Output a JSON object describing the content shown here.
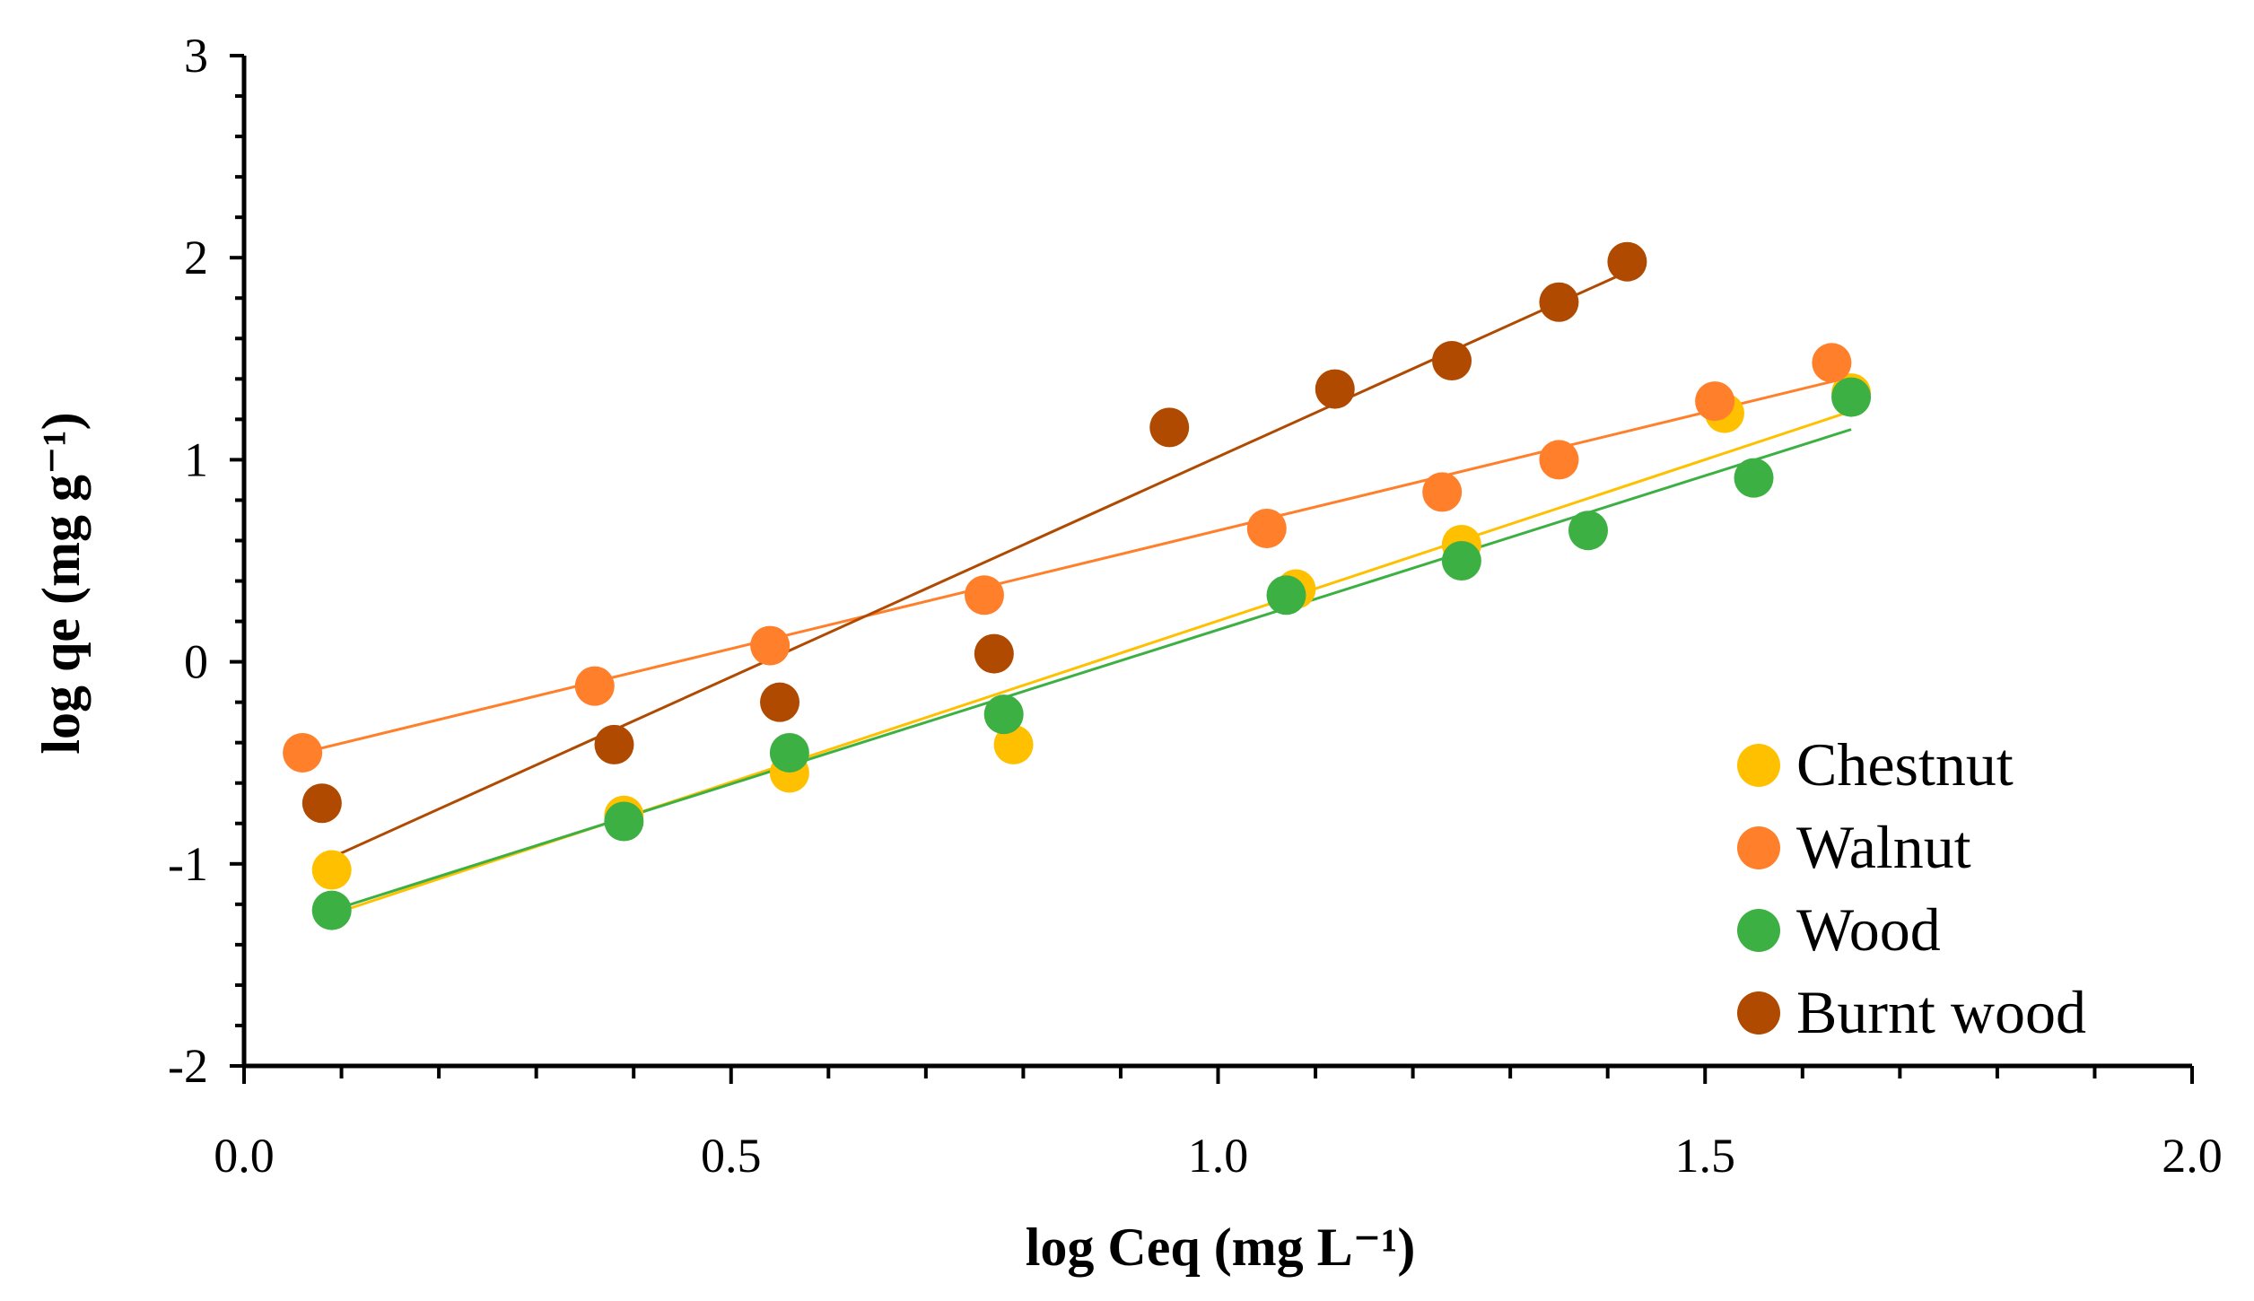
{
  "chart_data": {
    "type": "scatter",
    "xlabel": "log Ceq (mg L⁻¹)",
    "ylabel": "log qe (mg g⁻¹)",
    "xlim": [
      0.0,
      2.0
    ],
    "ylim": [
      -2,
      3
    ],
    "xticks": [
      0.0,
      0.5,
      1.0,
      1.5,
      2.0
    ],
    "xtick_labels": [
      "0.0",
      "0.5",
      "1.0",
      "1.5",
      "2.0"
    ],
    "yticks": [
      -2,
      -1,
      0,
      1,
      2,
      3
    ],
    "ytick_labels": [
      "-2",
      "-1",
      "0",
      "1",
      "2",
      "3"
    ],
    "x_minor_step": 0.1,
    "y_minor_step": 0.2,
    "grid": false,
    "legend_position": "bottom-right",
    "series": [
      {
        "name": "Chestnut",
        "color": "#FFC000",
        "points": [
          [
            0.09,
            -1.03
          ],
          [
            0.39,
            -0.76
          ],
          [
            0.56,
            -0.55
          ],
          [
            0.79,
            -0.41
          ],
          [
            1.08,
            0.36
          ],
          [
            1.25,
            0.58
          ],
          [
            1.52,
            1.23
          ],
          [
            1.65,
            1.33
          ]
        ],
        "trendline": [
          [
            0.09,
            -1.25
          ],
          [
            1.65,
            1.24
          ]
        ]
      },
      {
        "name": "Walnut",
        "color": "#FF7F2A",
        "points": [
          [
            0.06,
            -0.45
          ],
          [
            0.36,
            -0.12
          ],
          [
            0.54,
            0.08
          ],
          [
            0.76,
            0.33
          ],
          [
            1.05,
            0.66
          ],
          [
            1.23,
            0.84
          ],
          [
            1.35,
            1.0
          ],
          [
            1.51,
            1.29
          ],
          [
            1.63,
            1.48
          ]
        ],
        "trendline": [
          [
            0.06,
            -0.45
          ],
          [
            1.65,
            1.41
          ]
        ]
      },
      {
        "name": "Wood",
        "color": "#3CB043",
        "points": [
          [
            0.09,
            -1.23
          ],
          [
            0.39,
            -0.79
          ],
          [
            0.56,
            -0.45
          ],
          [
            0.78,
            -0.26
          ],
          [
            1.07,
            0.33
          ],
          [
            1.25,
            0.5
          ],
          [
            1.38,
            0.65
          ],
          [
            1.55,
            0.91
          ],
          [
            1.65,
            1.31
          ]
        ],
        "trendline": [
          [
            0.09,
            -1.23
          ],
          [
            1.65,
            1.15
          ]
        ]
      },
      {
        "name": "Burnt wood",
        "color": "#B04A00",
        "points": [
          [
            0.08,
            -0.7
          ],
          [
            0.38,
            -0.41
          ],
          [
            0.55,
            -0.2
          ],
          [
            0.77,
            0.04
          ],
          [
            0.95,
            1.16
          ],
          [
            1.12,
            1.35
          ],
          [
            1.24,
            1.49
          ],
          [
            1.35,
            1.78
          ],
          [
            1.42,
            1.98
          ]
        ],
        "trendline": [
          [
            0.08,
            -0.99
          ],
          [
            1.42,
            1.93
          ]
        ]
      }
    ]
  }
}
